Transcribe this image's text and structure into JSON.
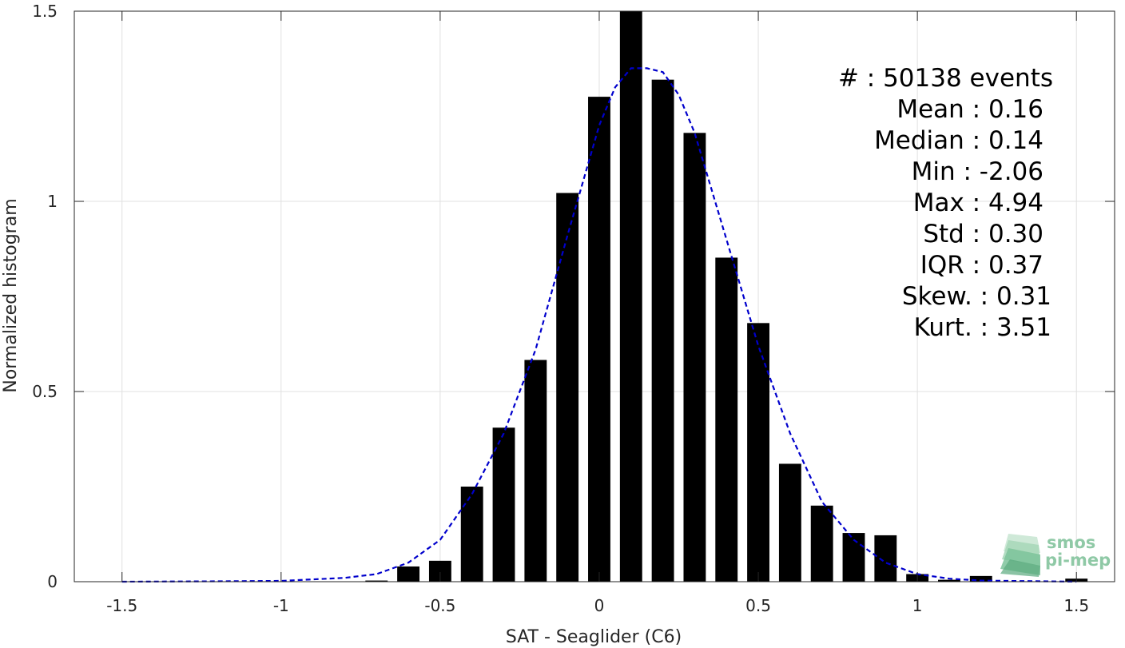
{
  "colors": {
    "bar": "#000000",
    "fit_line": "#0000cc",
    "grid": "#e0e0e0",
    "axis": "#262626",
    "logo": "#8fc9a6"
  },
  "stats": [
    {
      "label": "#",
      "sep": " : ",
      "value": "50138 events"
    },
    {
      "label": "Mean",
      "sep": " : ",
      "value": "0.16"
    },
    {
      "label": "Median",
      "sep": " : ",
      "value": "0.14"
    },
    {
      "label": "Min",
      "sep": " : ",
      "value": "-2.06"
    },
    {
      "label": "Max",
      "sep": " : ",
      "value": "4.94"
    },
    {
      "label": "Std",
      "sep": " : ",
      "value": "0.30"
    },
    {
      "label": "IQR",
      "sep": " : ",
      "value": "0.37"
    },
    {
      "label": "Skew.",
      "sep": " : ",
      "value": "0.31"
    },
    {
      "label": "Kurt.",
      "sep": " : ",
      "value": "3.51"
    }
  ],
  "logo": {
    "line1": "smos",
    "line2": "pi-mep"
  },
  "chart_data": {
    "type": "bar",
    "xlabel": "SAT - Seaglider (C6)",
    "ylabel": "Normalized histogram",
    "xlim": [
      -1.65,
      1.62
    ],
    "ylim": [
      0,
      1.5
    ],
    "xticks": [
      -1.5,
      -1,
      -0.5,
      0,
      0.5,
      1,
      1.5
    ],
    "xtick_labels": [
      "-1.5",
      "-1",
      "-0.5",
      "0",
      "0.5",
      "1",
      "1.5"
    ],
    "yticks": [
      0,
      0.5,
      1,
      1.5
    ],
    "ytick_labels": [
      "0",
      "0.5",
      "1",
      "1.5"
    ],
    "grid": true,
    "bar_width": 0.07,
    "series": [
      {
        "type": "bar",
        "x": [
          -0.7,
          -0.6,
          -0.5,
          -0.4,
          -0.3,
          -0.2,
          -0.1,
          0.0,
          0.1,
          0.2,
          0.3,
          0.4,
          0.5,
          0.6,
          0.7,
          0.8,
          0.9,
          1.0,
          1.1,
          1.2,
          1.5
        ],
        "values": [
          0.003,
          0.04,
          0.055,
          0.25,
          0.405,
          0.583,
          1.022,
          1.275,
          1.5,
          1.32,
          1.18,
          0.852,
          0.68,
          0.31,
          0.2,
          0.128,
          0.122,
          0.02,
          0.005,
          0.015,
          0.008
        ]
      },
      {
        "type": "line",
        "style": "dashed",
        "x": [
          -1.5,
          -1.2,
          -1.0,
          -0.8,
          -0.7,
          -0.6,
          -0.5,
          -0.4,
          -0.3,
          -0.2,
          -0.1,
          0.0,
          0.05,
          0.1,
          0.15,
          0.2,
          0.25,
          0.3,
          0.4,
          0.5,
          0.6,
          0.7,
          0.8,
          0.9,
          1.0,
          1.1,
          1.2,
          1.5
        ],
        "values": [
          0.0,
          0.001,
          0.002,
          0.01,
          0.02,
          0.05,
          0.11,
          0.23,
          0.39,
          0.61,
          0.91,
          1.2,
          1.3,
          1.35,
          1.35,
          1.34,
          1.28,
          1.18,
          0.9,
          0.62,
          0.39,
          0.21,
          0.11,
          0.05,
          0.02,
          0.008,
          0.003,
          0.0
        ]
      }
    ]
  }
}
